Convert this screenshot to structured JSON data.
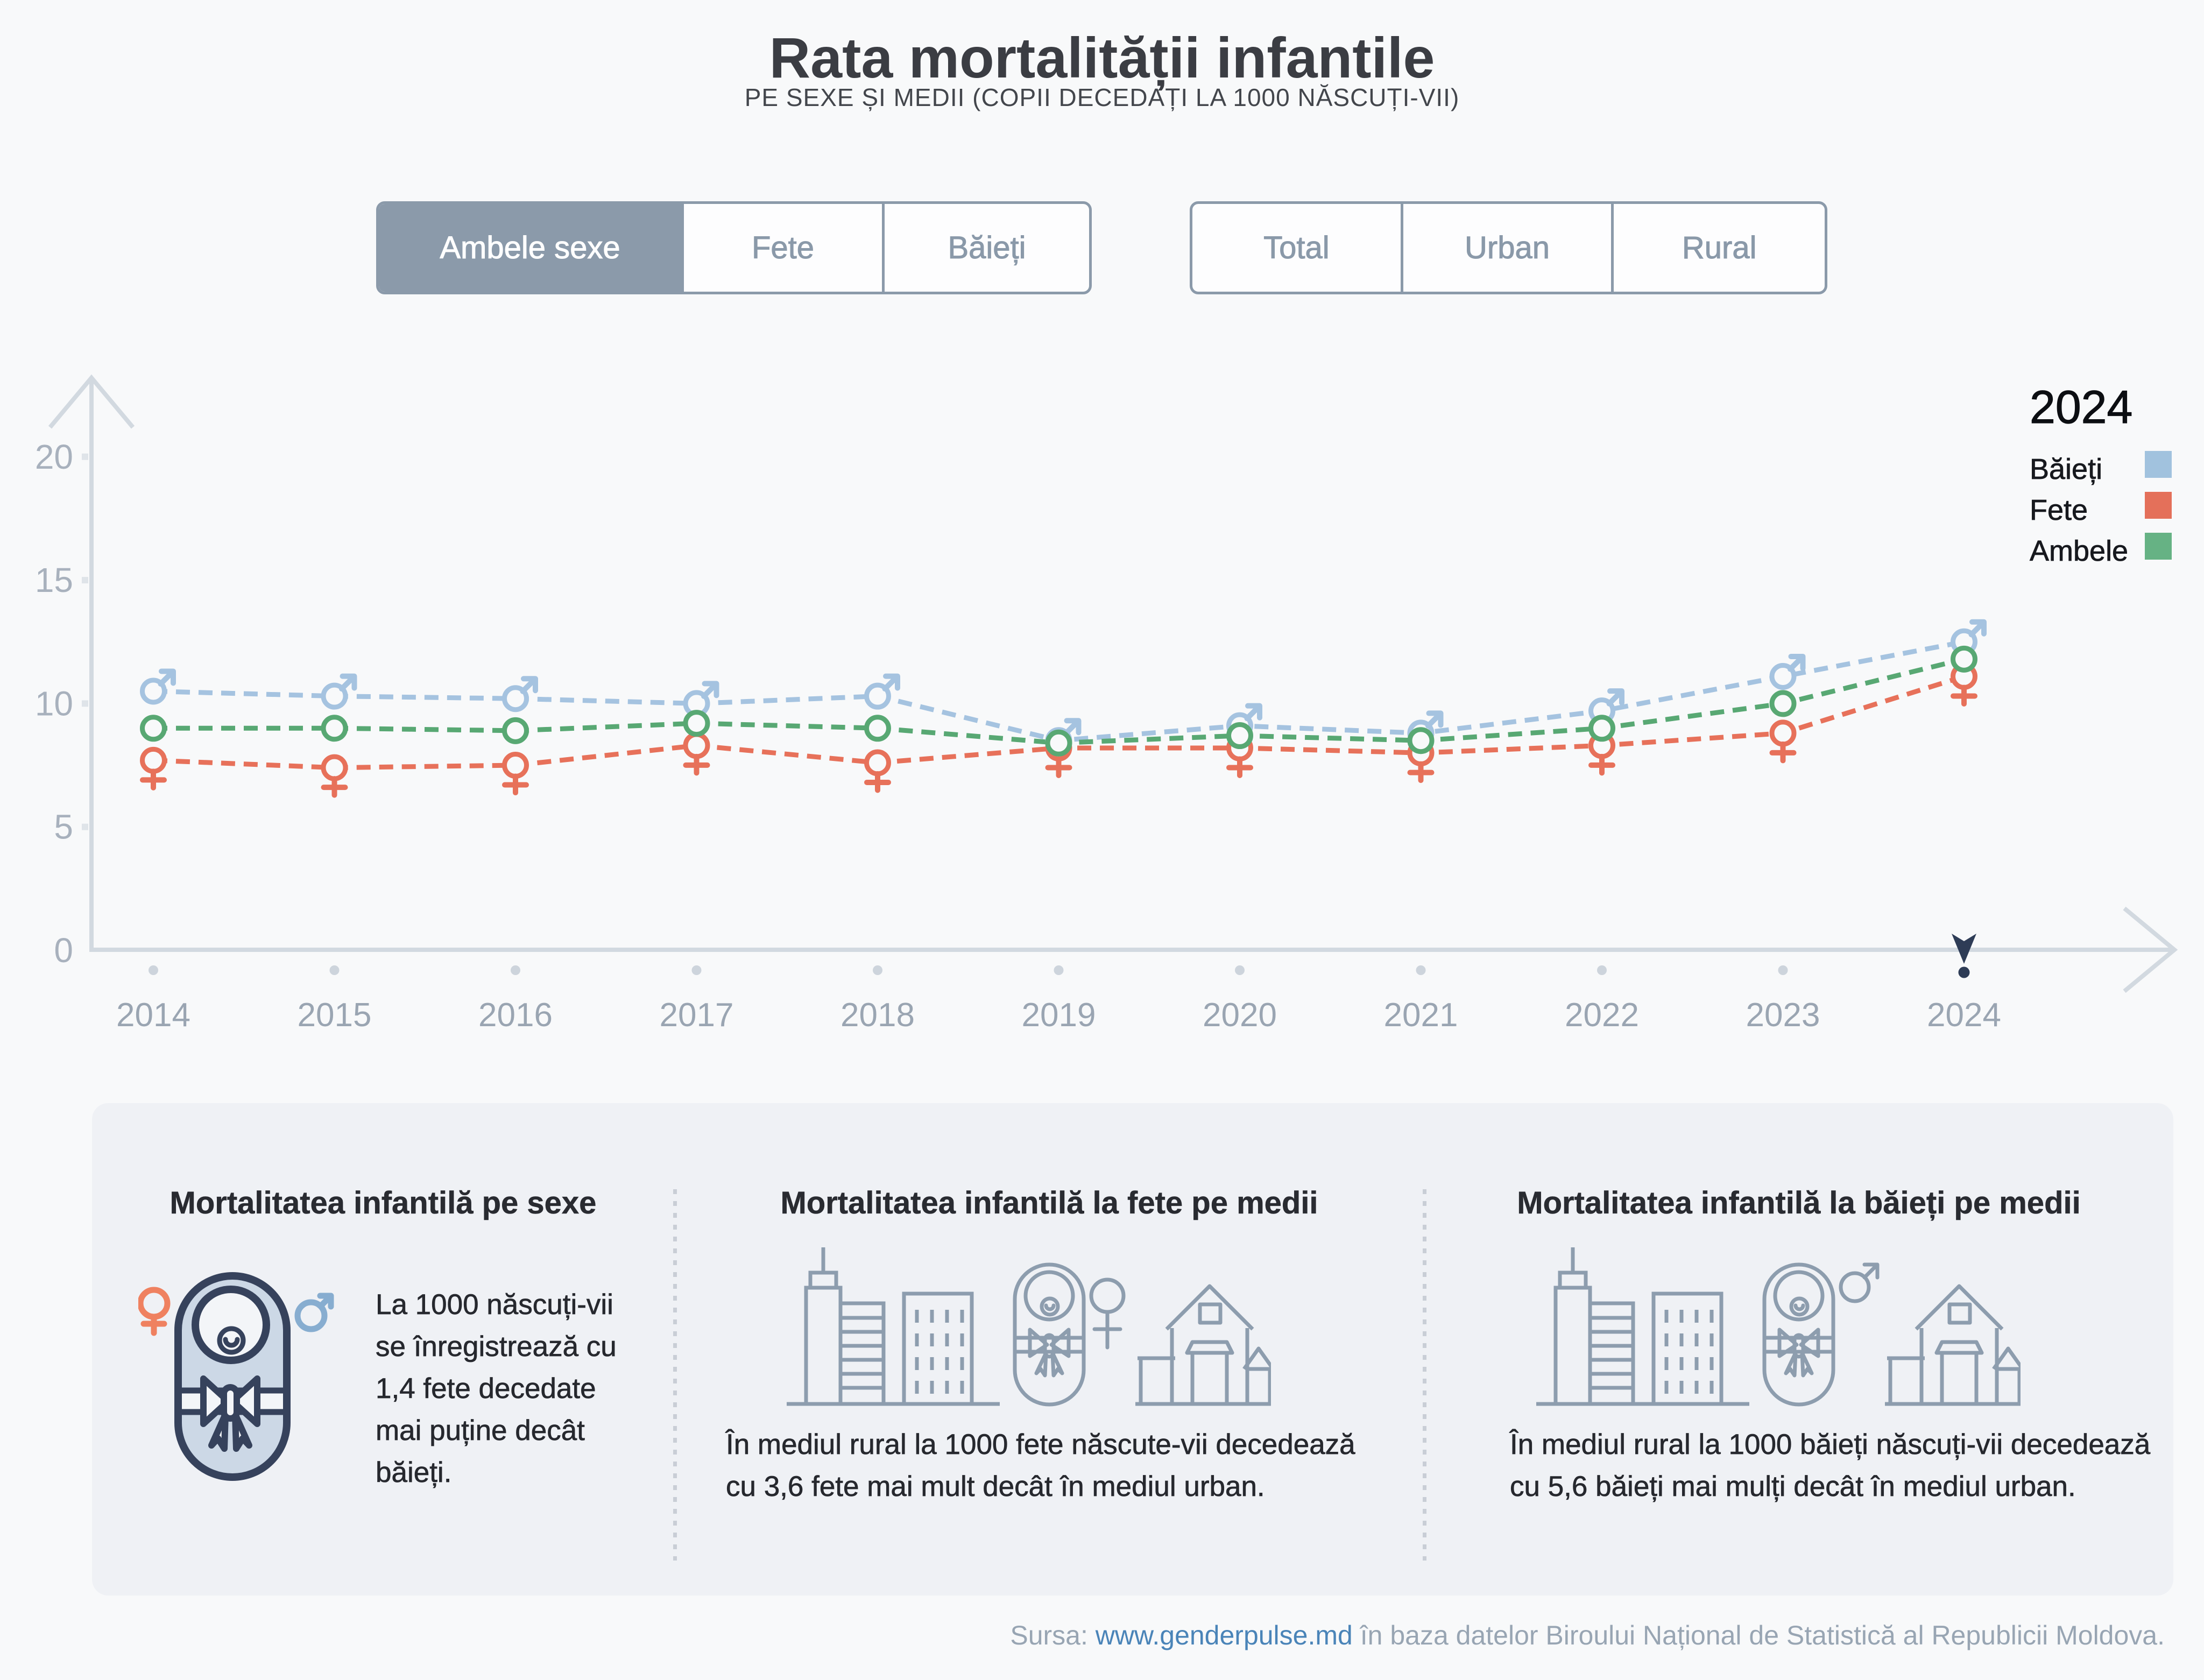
{
  "title": "Rata mortalității infantile",
  "subtitle": "PE SEXE ȘI MEDII (COPII DECEDAȚI LA 1000 NĂSCUȚI-VII)",
  "filters": {
    "sex": {
      "options": [
        {
          "label": "Ambele sexe",
          "selected": true
        },
        {
          "label": "Fete",
          "selected": false
        },
        {
          "label": "Băieți",
          "selected": false
        }
      ]
    },
    "media": {
      "options": [
        {
          "label": "Total",
          "selected": false
        },
        {
          "label": "Urban",
          "selected": false
        },
        {
          "label": "Rural",
          "selected": false
        }
      ]
    }
  },
  "chart_data": {
    "type": "line",
    "title": "Rata mortalității infantile",
    "xlabel": "",
    "ylabel": "",
    "x": [
      2014,
      2015,
      2016,
      2017,
      2018,
      2019,
      2020,
      2021,
      2022,
      2023,
      2024
    ],
    "ylim": [
      0,
      20
    ],
    "yticks": [
      0,
      5,
      10,
      15,
      20
    ],
    "grid": false,
    "legend_position": "top-right",
    "line_style": "dashed",
    "selected_year": 2024,
    "series": [
      {
        "name": "Băieți",
        "color": "#a5c3e0",
        "marker": "male",
        "values": [
          10.5,
          10.3,
          10.2,
          10.0,
          10.3,
          8.5,
          9.1,
          8.8,
          9.7,
          11.1,
          12.5
        ]
      },
      {
        "name": "Fete",
        "color": "#e7715a",
        "marker": "female",
        "values": [
          7.7,
          7.4,
          7.5,
          8.3,
          7.6,
          8.2,
          8.2,
          8.0,
          8.3,
          8.8,
          11.1
        ]
      },
      {
        "name": "Ambele",
        "color": "#58a873",
        "marker": "circle",
        "values": [
          9.0,
          9.0,
          8.9,
          9.2,
          9.0,
          8.4,
          8.7,
          8.5,
          9.0,
          10.0,
          11.8
        ]
      }
    ]
  },
  "legend": {
    "year": "2024",
    "items": [
      {
        "label": "Băieți",
        "color": "#a1c2de"
      },
      {
        "label": "Fete",
        "color": "#e4705a"
      },
      {
        "label": "Ambele",
        "color": "#66b284"
      }
    ]
  },
  "cards": [
    {
      "title": "Mortalitatea infantilă pe sexe",
      "text": "La 1000 născuți-vii\nse înregistrează cu\n1,4 fete decedate\nmai puține decât\nbăieți."
    },
    {
      "title": "Mortalitatea infantilă la fete pe medii",
      "text": "În mediul rural la 1000 fete născute-vii decedează\ncu 3,6 fete mai mult decât în mediul urban."
    },
    {
      "title": "Mortalitatea infantilă la băieți pe medii",
      "text": "În mediul rural la 1000 băieți născuți-vii decedează\ncu 5,6 băieți mai mulți decât în mediul urban."
    }
  ],
  "footer": {
    "source_label": "Sursa:",
    "link_text": "www.genderpulse.md",
    "rest": "în baza datelor Biroului Național de Statistică al Republicii Moldova."
  }
}
